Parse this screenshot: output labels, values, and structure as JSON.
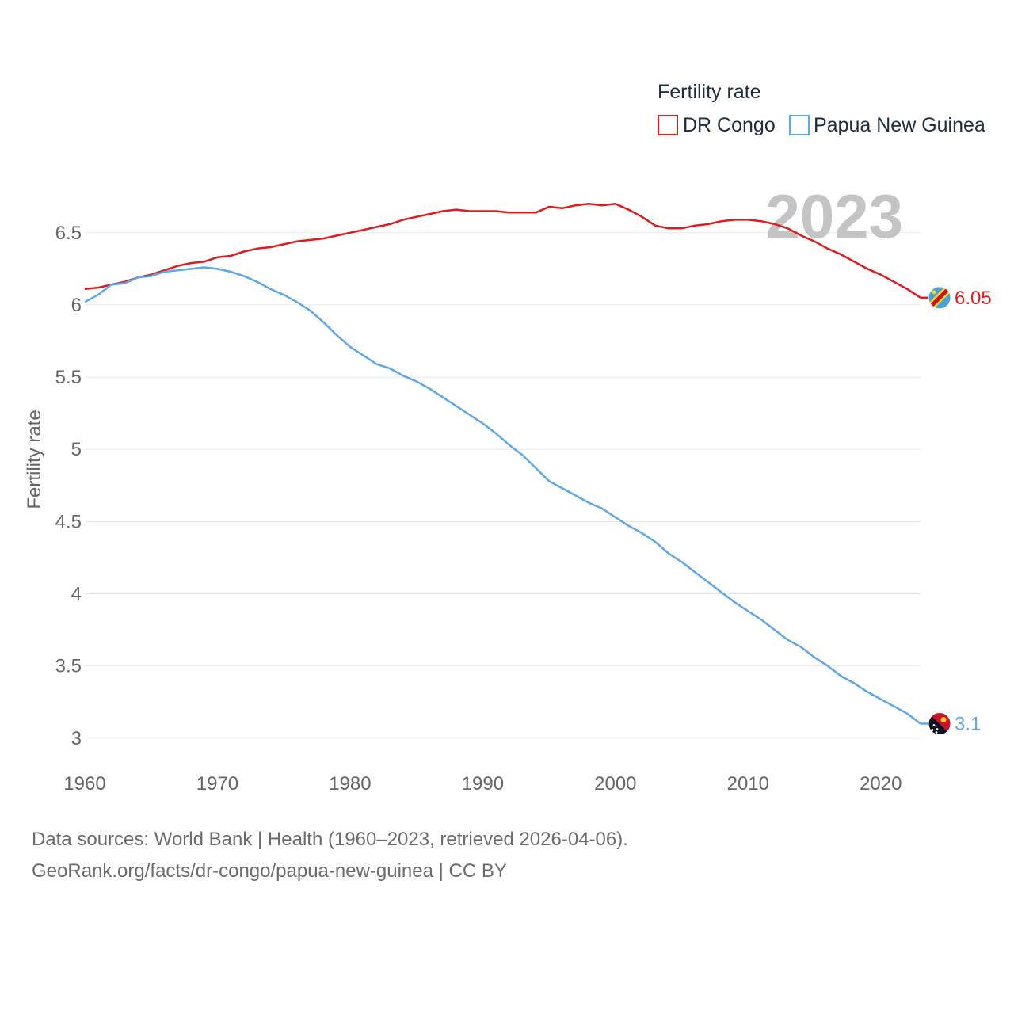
{
  "chart_data": {
    "type": "line",
    "ylabel": "Fertility rate",
    "xlabel": "",
    "legend_title": "Fertility rate",
    "legend_position": "top-right",
    "watermark_year": "2023",
    "xlim": [
      1960,
      2023
    ],
    "ylim": [
      2.9,
      6.85
    ],
    "x_ticks": [
      1960,
      1970,
      1980,
      1990,
      2000,
      2010,
      2020
    ],
    "x_tick_labels": [
      "1960",
      "1970",
      "1980",
      "1990",
      "2000",
      "2010",
      "2020"
    ],
    "y_ticks": [
      3,
      3.5,
      4,
      4.5,
      5,
      5.5,
      6,
      6.5
    ],
    "y_tick_labels": [
      "3",
      "3.5",
      "4",
      "4.5",
      "5",
      "5.5",
      "6",
      "6.5"
    ],
    "grid": true,
    "x": [
      1960,
      1961,
      1962,
      1963,
      1964,
      1965,
      1966,
      1967,
      1968,
      1969,
      1970,
      1971,
      1972,
      1973,
      1974,
      1975,
      1976,
      1977,
      1978,
      1979,
      1980,
      1981,
      1982,
      1983,
      1984,
      1985,
      1986,
      1987,
      1988,
      1989,
      1990,
      1991,
      1992,
      1993,
      1994,
      1995,
      1996,
      1997,
      1998,
      1999,
      2000,
      2001,
      2002,
      2003,
      2004,
      2005,
      2006,
      2007,
      2008,
      2009,
      2010,
      2011,
      2012,
      2013,
      2014,
      2015,
      2016,
      2017,
      2018,
      2019,
      2020,
      2021,
      2022,
      2023
    ],
    "series": [
      {
        "name": "DR Congo",
        "color": "#e31a1c",
        "end_label": "6.05",
        "values": [
          6.11,
          6.12,
          6.14,
          6.16,
          6.19,
          6.21,
          6.24,
          6.27,
          6.29,
          6.3,
          6.33,
          6.34,
          6.37,
          6.39,
          6.4,
          6.42,
          6.44,
          6.45,
          6.46,
          6.48,
          6.5,
          6.52,
          6.54,
          6.56,
          6.59,
          6.61,
          6.63,
          6.65,
          6.66,
          6.65,
          6.65,
          6.65,
          6.64,
          6.64,
          6.64,
          6.68,
          6.67,
          6.69,
          6.7,
          6.69,
          6.7,
          6.66,
          6.61,
          6.55,
          6.53,
          6.53,
          6.55,
          6.56,
          6.58,
          6.59,
          6.59,
          6.58,
          6.56,
          6.53,
          6.48,
          6.44,
          6.39,
          6.35,
          6.3,
          6.25,
          6.21,
          6.16,
          6.11,
          6.05
        ]
      },
      {
        "name": "Papua New Guinea",
        "color": "#5ea8ea",
        "end_label": "3.1",
        "values": [
          6.02,
          6.07,
          6.14,
          6.15,
          6.19,
          6.2,
          6.23,
          6.24,
          6.25,
          6.26,
          6.25,
          6.23,
          6.2,
          6.16,
          6.11,
          6.07,
          6.02,
          5.96,
          5.88,
          5.79,
          5.71,
          5.65,
          5.59,
          5.56,
          5.51,
          5.47,
          5.42,
          5.36,
          5.3,
          5.24,
          5.18,
          5.11,
          5.03,
          4.96,
          4.87,
          4.78,
          4.73,
          4.68,
          4.63,
          4.59,
          4.53,
          4.47,
          4.42,
          4.36,
          4.28,
          4.22,
          4.15,
          4.08,
          4.01,
          3.94,
          3.88,
          3.82,
          3.75,
          3.68,
          3.63,
          3.56,
          3.5,
          3.43,
          3.38,
          3.32,
          3.27,
          3.22,
          3.17,
          3.1
        ]
      }
    ]
  },
  "footer": {
    "line1": "Data sources: World Bank | Health (1960–2023, retrieved 2026-04-06).",
    "line2": "GeoRank.org/facts/dr-congo/papua-new-guinea | CC BY"
  }
}
